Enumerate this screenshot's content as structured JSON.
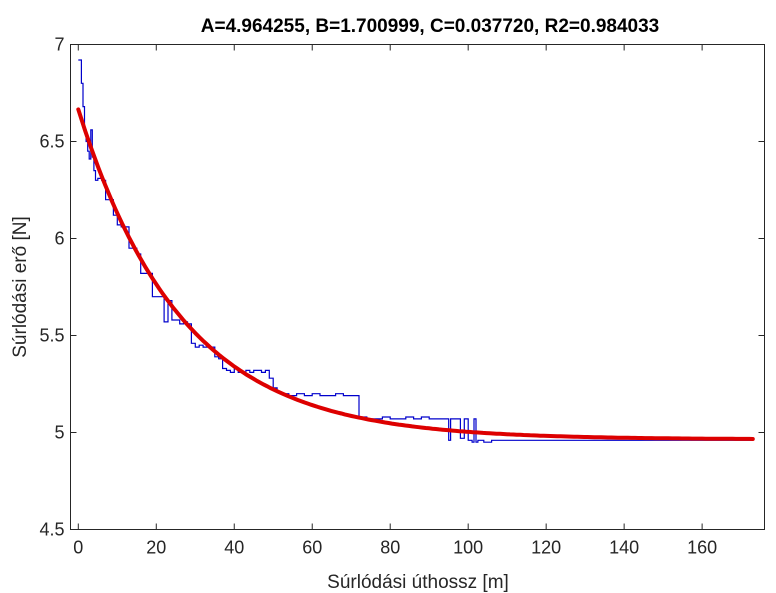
{
  "chart_data": {
    "type": "line",
    "title": "A=4.964255, B=1.700999, C=0.037720, R2=0.984033",
    "xlabel": "Súrlódási úthossz [m]",
    "ylabel": "Súrlódási erő [N]",
    "xlim": [
      -2,
      176
    ],
    "ylim": [
      4.5,
      7
    ],
    "xticks": [
      "0",
      "20",
      "40",
      "60",
      "80",
      "100",
      "120",
      "140",
      "160"
    ],
    "yticks": [
      "4.5",
      "5",
      "5.5",
      "6",
      "6.5",
      "7"
    ],
    "grid": false,
    "colors": {
      "measured": "#0000cc",
      "fit": "#dd0000"
    },
    "fit": {
      "A": 4.964255,
      "B": 1.700999,
      "C": 0.03772,
      "x_range": [
        0,
        173
      ]
    },
    "series": [
      {
        "x": [
          0,
          0.4,
          0.8,
          1.2,
          1.6,
          2.0,
          2.4,
          2.8,
          3.2,
          3.6,
          4.0,
          4.4,
          5.0,
          6.0,
          7.0,
          8.0,
          9.0,
          10.0,
          11.0,
          12.0,
          13.0,
          14.0,
          15.0,
          16.0,
          17.0,
          18.0,
          19.0,
          20.0,
          21.0,
          22.0,
          23.0,
          24.0,
          25.0,
          26.0,
          27.0,
          28.0,
          29.0,
          30.0,
          31.0,
          32.0,
          33.0,
          34.0,
          35.0,
          36.0,
          37.0,
          38.0,
          39.0,
          40.0,
          41.0,
          42.0,
          43.0,
          44.0,
          45.0,
          46.0,
          47.0,
          48.0,
          49.0,
          50.0,
          51.0,
          52.0,
          54.0,
          56.0,
          58.0,
          60.0,
          62.0,
          64.0,
          66.0,
          68.0,
          70.0,
          72.0,
          74.0,
          76.0,
          78.0,
          80.0,
          82.0,
          84.0,
          86.0,
          88.0,
          90.0,
          92.0,
          94.0,
          95.0,
          95.5,
          96.0,
          97.0,
          98.0,
          99.0,
          100.0,
          101.0,
          101.5,
          102.0,
          102.5,
          104.0,
          106.0,
          108.0,
          110.0,
          114.0,
          118.0,
          120.0,
          124.0,
          128.0,
          130.0,
          134.0,
          138.0,
          140.0,
          144.0,
          148.0,
          152.0,
          156.0,
          160.0,
          164.0,
          168.0,
          173.0
        ],
        "y": [
          6.92,
          6.92,
          6.8,
          6.68,
          6.56,
          6.5,
          6.45,
          6.41,
          6.56,
          6.42,
          6.35,
          6.3,
          6.31,
          6.3,
          6.2,
          6.2,
          6.12,
          6.07,
          6.06,
          6.06,
          5.95,
          5.95,
          5.92,
          5.82,
          5.82,
          5.82,
          5.7,
          5.7,
          5.7,
          5.57,
          5.68,
          5.58,
          5.58,
          5.56,
          5.57,
          5.56,
          5.46,
          5.44,
          5.45,
          5.44,
          5.44,
          5.44,
          5.39,
          5.38,
          5.33,
          5.32,
          5.31,
          5.33,
          5.31,
          5.31,
          5.32,
          5.31,
          5.32,
          5.32,
          5.31,
          5.32,
          5.28,
          5.23,
          5.21,
          5.2,
          5.19,
          5.2,
          5.19,
          5.2,
          5.19,
          5.19,
          5.2,
          5.19,
          5.19,
          5.08,
          5.07,
          5.07,
          5.08,
          5.07,
          5.07,
          5.08,
          5.07,
          5.08,
          5.07,
          5.07,
          5.07,
          4.96,
          5.07,
          5.07,
          5.07,
          4.97,
          5.07,
          4.96,
          4.95,
          5.07,
          4.95,
          4.96,
          4.95,
          4.96,
          4.96,
          4.96,
          4.96,
          4.96,
          4.96,
          4.96,
          4.96,
          4.96,
          4.96,
          4.96,
          4.96,
          4.96,
          4.96,
          4.96,
          4.96,
          4.96,
          4.96,
          4.96,
          4.96
        ]
      }
    ]
  }
}
